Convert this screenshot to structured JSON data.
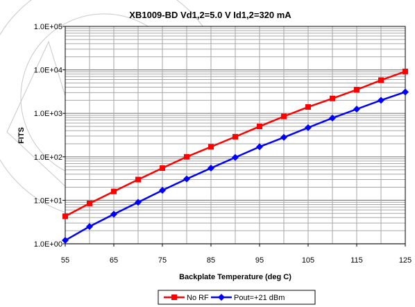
{
  "chart_data": {
    "type": "line",
    "title": "XB1009-BD Vd1,2=5.0 V Id1,2=320 mA",
    "xlabel": "Backplate Temperature (deg C)",
    "ylabel": "FITS",
    "y_scale": "log",
    "xlim": [
      55,
      125
    ],
    "ylim": [
      1,
      100000
    ],
    "x_ticks": [
      "55",
      "65",
      "75",
      "85",
      "95",
      "105",
      "115",
      "125"
    ],
    "y_ticks": [
      "1.0E+00",
      "1.0E+01",
      "1.0E+02",
      "1.0E+03",
      "1.0E+04",
      "1.0E+05"
    ],
    "x": [
      55,
      60,
      65,
      70,
      75,
      80,
      85,
      90,
      95,
      100,
      105,
      110,
      115,
      120,
      125
    ],
    "series": [
      {
        "name": "No RF",
        "color": "#ff0000",
        "marker": "square",
        "values": [
          4.3,
          8.5,
          16,
          30,
          55,
          100,
          170,
          290,
          500,
          850,
          1400,
          2200,
          3500,
          5800,
          9200
        ]
      },
      {
        "name": "Pout=+21 dBm",
        "color": "#0000ff",
        "marker": "diamond",
        "values": [
          1.2,
          2.5,
          4.8,
          9,
          17,
          31,
          55,
          97,
          170,
          280,
          470,
          780,
          1250,
          2000,
          3100
        ]
      }
    ],
    "grid": true,
    "legend": "bottom"
  }
}
